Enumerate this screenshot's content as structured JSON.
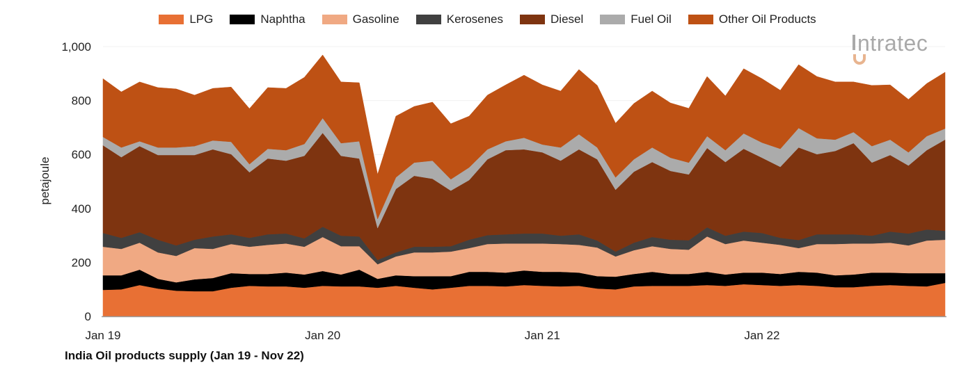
{
  "chart_data": {
    "type": "area",
    "stacked": true,
    "title": "India Oil products supply (Jan 19 - Nov 22)",
    "xlabel": "",
    "ylabel": "petajoule",
    "ylim": [
      0,
      1000
    ],
    "yticks": [
      "0",
      "200",
      "400",
      "600",
      "800",
      "1,000"
    ],
    "ytick_values": [
      0,
      200,
      400,
      600,
      800,
      1000
    ],
    "xtick_labels": [
      "Jan 19",
      "Jan 20",
      "Jan 21",
      "Jan 22"
    ],
    "xtick_indices": [
      0,
      12,
      24,
      36
    ],
    "grid": "horizontal",
    "legend_position": "top",
    "categories": [
      "Jan 19",
      "Feb 19",
      "Mar 19",
      "Apr 19",
      "May 19",
      "Jun 19",
      "Jul 19",
      "Aug 19",
      "Sep 19",
      "Oct 19",
      "Nov 19",
      "Dec 19",
      "Jan 20",
      "Feb 20",
      "Mar 20",
      "Apr 20",
      "May 20",
      "Jun 20",
      "Jul 20",
      "Aug 20",
      "Sep 20",
      "Oct 20",
      "Nov 20",
      "Dec 20",
      "Jan 21",
      "Feb 21",
      "Mar 21",
      "Apr 21",
      "May 21",
      "Jun 21",
      "Jul 21",
      "Aug 21",
      "Sep 21",
      "Oct 21",
      "Nov 21",
      "Dec 21",
      "Jan 22",
      "Feb 22",
      "Mar 22",
      "Apr 22",
      "May 22",
      "Jun 22",
      "Jul 22",
      "Aug 22",
      "Sep 22",
      "Oct 22",
      "Nov 22"
    ],
    "series": [
      {
        "name": "LPG",
        "color": "#E87034",
        "values": [
          98,
          100,
          116,
          103,
          95,
          93,
          93,
          106,
          113,
          111,
          111,
          106,
          113,
          111,
          111,
          106,
          113,
          106,
          100,
          106,
          113,
          113,
          111,
          116,
          113,
          111,
          113,
          103,
          100,
          111,
          113,
          113,
          113,
          116,
          113,
          119,
          116,
          113,
          116,
          113,
          108,
          108,
          113,
          116,
          113,
          111,
          124
        ]
      },
      {
        "name": "Naphtha",
        "color": "#000000",
        "values": [
          54,
          52,
          57,
          36,
          31,
          44,
          49,
          54,
          44,
          46,
          51,
          49,
          55,
          44,
          62,
          33,
          39,
          43,
          49,
          43,
          52,
          52,
          51,
          54,
          52,
          54,
          49,
          46,
          47,
          46,
          52,
          44,
          44,
          49,
          42,
          43,
          46,
          44,
          49,
          49,
          44,
          47,
          49,
          46,
          47,
          49,
          36
        ]
      },
      {
        "name": "Gasoline",
        "color": "#F0A983",
        "values": [
          106,
          98,
          100,
          98,
          98,
          116,
          108,
          108,
          101,
          108,
          108,
          103,
          126,
          105,
          87,
          54,
          70,
          88,
          88,
          91,
          88,
          103,
          108,
          100,
          105,
          103,
          103,
          106,
          75,
          88,
          95,
          93,
          90,
          131,
          113,
          119,
          111,
          108,
          88,
          106,
          116,
          115,
          108,
          111,
          103,
          121,
          124
        ]
      },
      {
        "name": "Kerosenes",
        "color": "#404040",
        "values": [
          51,
          41,
          39,
          47,
          39,
          31,
          46,
          36,
          33,
          39,
          37,
          31,
          38,
          39,
          36,
          16,
          15,
          21,
          21,
          20,
          31,
          33,
          34,
          37,
          37,
          31,
          39,
          26,
          18,
          28,
          34,
          34,
          35,
          34,
          31,
          33,
          36,
          26,
          30,
          36,
          36,
          34,
          29,
          41,
          44,
          41,
          33
        ]
      },
      {
        "name": "Diesel",
        "color": "#7E3410",
        "values": [
          325,
          299,
          319,
          314,
          335,
          314,
          323,
          297,
          243,
          281,
          270,
          306,
          348,
          296,
          289,
          118,
          235,
          263,
          252,
          206,
          221,
          281,
          312,
          312,
          301,
          278,
          315,
          301,
          229,
          263,
          278,
          255,
          244,
          294,
          273,
          307,
          279,
          263,
          343,
          297,
          309,
          338,
          271,
          284,
          252,
          294,
          338
        ]
      },
      {
        "name": "Fuel Oil",
        "color": "#ABABAB",
        "values": [
          31,
          36,
          18,
          28,
          28,
          33,
          33,
          46,
          30,
          36,
          39,
          44,
          55,
          47,
          64,
          34,
          43,
          49,
          67,
          42,
          47,
          37,
          33,
          43,
          29,
          49,
          56,
          44,
          46,
          46,
          54,
          49,
          44,
          44,
          44,
          57,
          56,
          67,
          72,
          59,
          42,
          41,
          61,
          57,
          49,
          52,
          41
        ]
      },
      {
        "name": "Other Oil Products",
        "color": "#BE5114",
        "values": [
          216,
          206,
          220,
          222,
          217,
          189,
          193,
          203,
          206,
          227,
          229,
          247,
          234,
          227,
          217,
          165,
          227,
          208,
          217,
          206,
          190,
          201,
          209,
          232,
          221,
          209,
          240,
          230,
          201,
          207,
          209,
          203,
          201,
          221,
          201,
          240,
          237,
          217,
          235,
          229,
          214,
          186,
          225,
          203,
          196,
          195,
          209
        ]
      }
    ]
  },
  "logo": {
    "text": "intratec",
    "accent_color": "#E8B48F"
  }
}
